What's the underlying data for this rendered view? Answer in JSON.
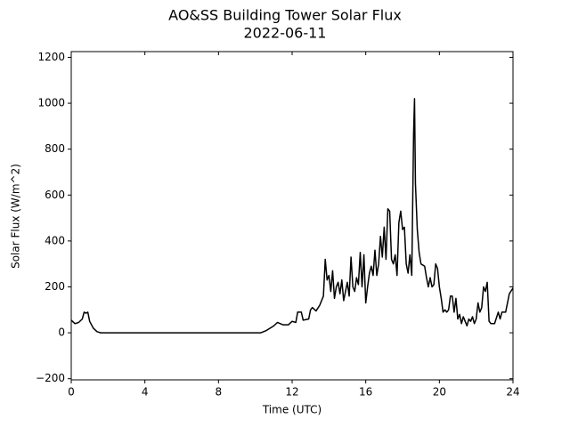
{
  "chart_data": {
    "type": "line",
    "title": "AO&SS Building Tower Solar Flux",
    "subtitle": "2022-06-11",
    "x_label": "Time (UTC)",
    "y_label": "Solar Flux (W/m^2)",
    "xlim": [
      0,
      24
    ],
    "ylim": [
      -205,
      1225
    ],
    "xticks": [
      0,
      4,
      8,
      12,
      16,
      20,
      24
    ],
    "yticks": [
      {
        "value": -200,
        "label": "−200"
      },
      0,
      200,
      400,
      600,
      800,
      1000,
      1200
    ],
    "series": [
      {
        "color": "#000000",
        "x": [
          0,
          0.2,
          0.4,
          0.6,
          0.7,
          0.8,
          0.9,
          1.0,
          1.2,
          1.4,
          1.6,
          10.3,
          10.6,
          11.0,
          11.2,
          11.5,
          11.8,
          12.0,
          12.2,
          12.3,
          12.5,
          12.6,
          12.9,
          13.0,
          13.1,
          13.3,
          13.5,
          13.7,
          13.8,
          13.9,
          14.0,
          14.1,
          14.2,
          14.3,
          14.4,
          14.5,
          14.6,
          14.7,
          14.8,
          14.9,
          15.0,
          15.1,
          15.2,
          15.3,
          15.4,
          15.5,
          15.6,
          15.7,
          15.8,
          15.9,
          16.0,
          16.1,
          16.2,
          16.3,
          16.4,
          16.5,
          16.6,
          16.7,
          16.8,
          16.9,
          17.0,
          17.1,
          17.2,
          17.3,
          17.4,
          17.5,
          17.6,
          17.7,
          17.8,
          17.9,
          18.0,
          18.1,
          18.2,
          18.3,
          18.4,
          18.5,
          18.6,
          18.65,
          18.7,
          18.8,
          18.9,
          19.0,
          19.2,
          19.3,
          19.4,
          19.5,
          19.6,
          19.7,
          19.8,
          19.9,
          20.0,
          20.1,
          20.2,
          20.3,
          20.4,
          20.5,
          20.6,
          20.7,
          20.8,
          20.9,
          21.0,
          21.1,
          21.2,
          21.3,
          21.4,
          21.5,
          21.6,
          21.7,
          21.8,
          21.9,
          22.0,
          22.1,
          22.2,
          22.3,
          22.4,
          22.5,
          22.6,
          22.7,
          22.8,
          23.0,
          23.2,
          23.3,
          23.4,
          23.6,
          23.8,
          24.0
        ],
        "values": [
          55,
          40,
          45,
          60,
          90,
          85,
          90,
          50,
          20,
          5,
          0,
          0,
          10,
          30,
          45,
          35,
          35,
          50,
          45,
          90,
          90,
          55,
          60,
          100,
          110,
          95,
          120,
          160,
          320,
          230,
          250,
          180,
          270,
          150,
          200,
          220,
          170,
          230,
          140,
          180,
          220,
          160,
          330,
          200,
          180,
          240,
          210,
          350,
          200,
          340,
          130,
          200,
          260,
          290,
          250,
          360,
          250,
          300,
          420,
          330,
          460,
          320,
          540,
          530,
          320,
          300,
          340,
          250,
          480,
          530,
          450,
          460,
          300,
          260,
          340,
          250,
          870,
          1020,
          650,
          450,
          350,
          300,
          290,
          240,
          200,
          240,
          200,
          210,
          300,
          280,
          200,
          150,
          90,
          100,
          90,
          100,
          160,
          160,
          90,
          150,
          60,
          80,
          40,
          70,
          50,
          30,
          60,
          50,
          70,
          40,
          60,
          130,
          90,
          110,
          200,
          180,
          220,
          50,
          40,
          40,
          90,
          60,
          90,
          90,
          170,
          195
        ]
      }
    ]
  }
}
